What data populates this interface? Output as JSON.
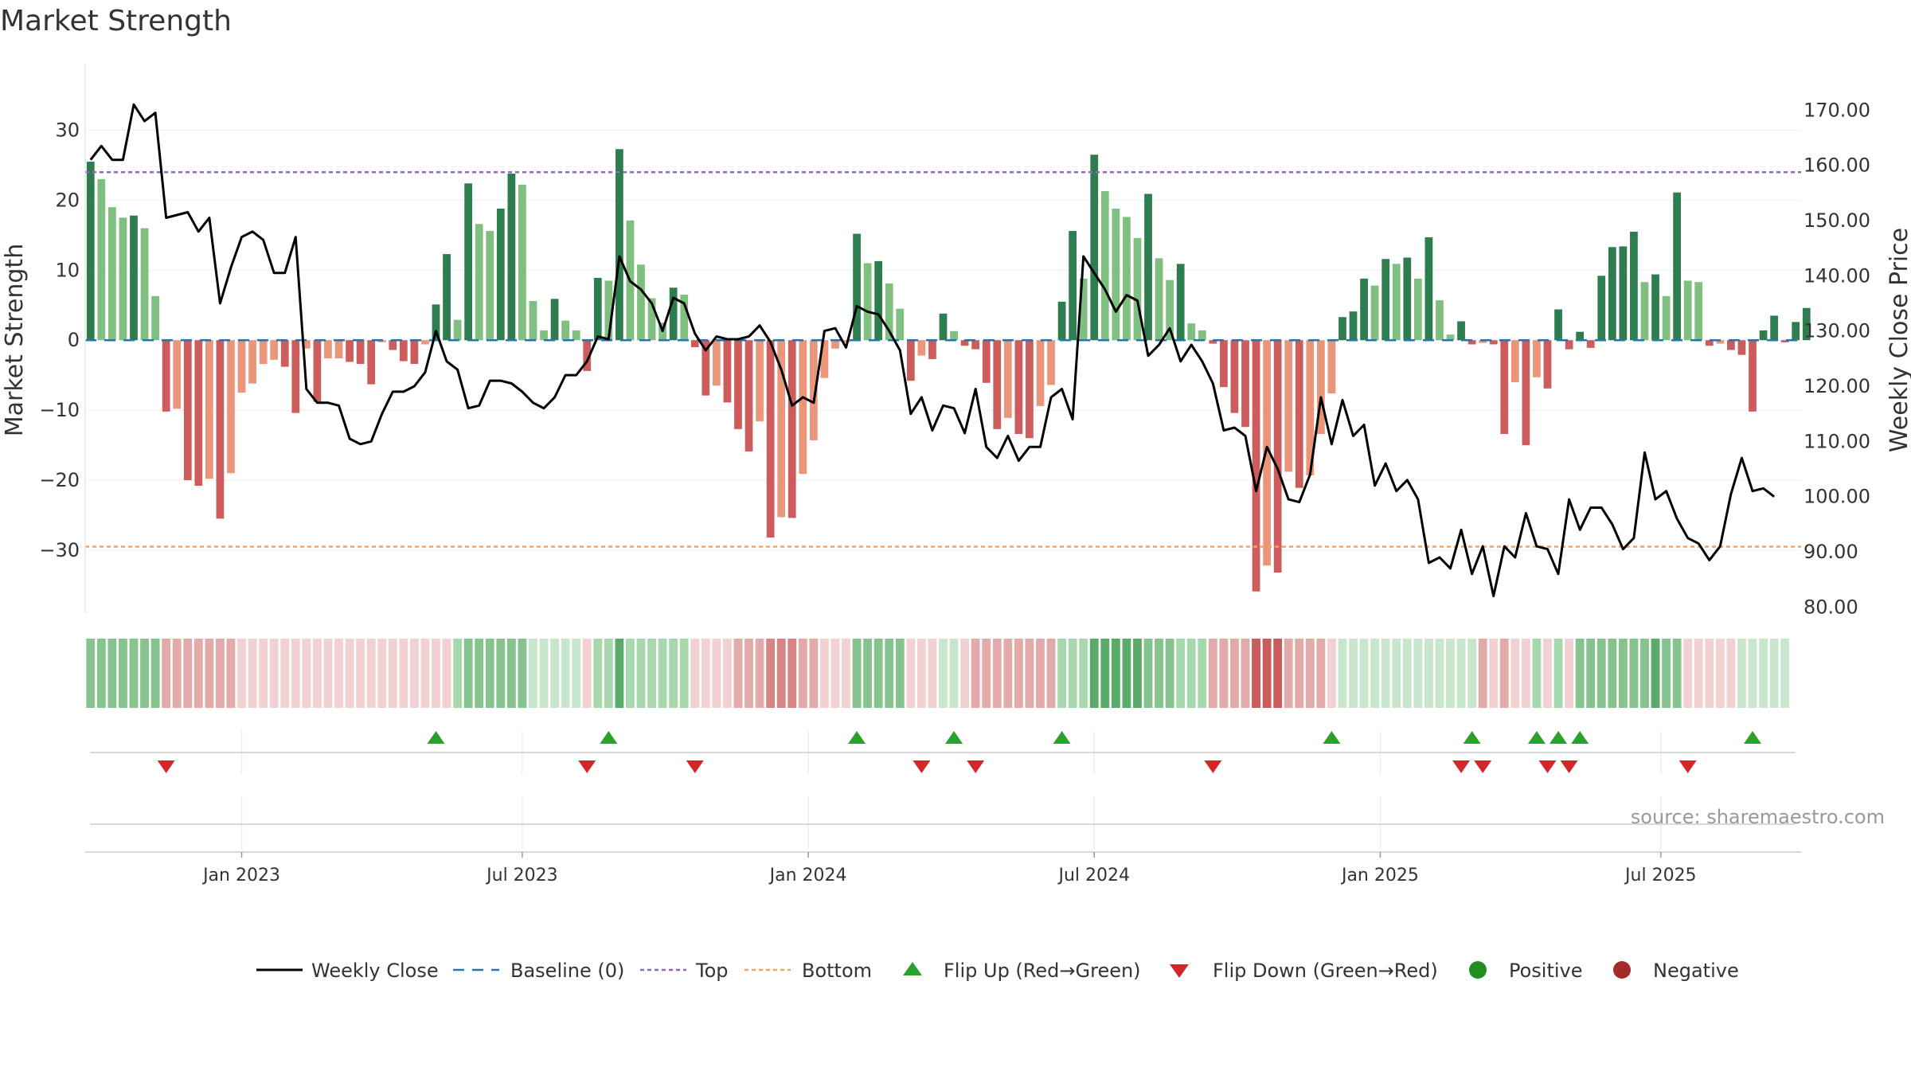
{
  "chart_data": {
    "type": "bar",
    "title": "Market Strength",
    "ylabel_left": "Market Strength",
    "ylabel_right": "Weekly Close Price",
    "ylim_left": [
      -39,
      39.5
    ],
    "ylim_right": [
      78.9,
      178.4
    ],
    "yticks_left": [
      30,
      20,
      10,
      0,
      -10,
      -20,
      -30
    ],
    "yticks_left_labels": [
      "30",
      "20",
      "10",
      "0",
      "−10",
      "−20",
      "−30"
    ],
    "yticks_right": [
      170,
      160,
      150,
      140,
      130,
      120,
      110,
      100,
      90,
      80
    ],
    "yticks_right_labels": [
      "170.00",
      "160.00",
      "150.00",
      "140.00",
      "130.00",
      "120.00",
      "110.00",
      "100.00",
      "90.00",
      "80.00"
    ],
    "top_threshold": 24,
    "bottom_threshold": -29.5,
    "x_index_range": [
      -0.5,
      158.5
    ],
    "x_ticks": [
      {
        "index": 14,
        "label": "Jan 2023"
      },
      {
        "index": 40,
        "label": "Jul 2023"
      },
      {
        "index": 66.5,
        "label": "Jan 2024"
      },
      {
        "index": 93,
        "label": "Jul 2024"
      },
      {
        "index": 119.5,
        "label": "Jan 2025"
      },
      {
        "index": 145.5,
        "label": "Jul 2025"
      }
    ],
    "strength": [
      25.5,
      23,
      19,
      17.5,
      17.8,
      16,
      6.3,
      -10.2,
      -9.8,
      -20,
      -20.8,
      -19.8,
      -25.5,
      -19,
      -7.5,
      -6.2,
      -3.4,
      -2.8,
      -3.8,
      -10.4,
      -1.2,
      -8.8,
      -2.6,
      -2.6,
      -3.1,
      -3.4,
      -6.3,
      -0.3,
      -1.4,
      -3,
      -3.4,
      -0.6,
      5.1,
      12.3,
      2.9,
      22.4,
      16.6,
      15.6,
      18.8,
      23.8,
      22.2,
      5.6,
      1.4,
      5.9,
      2.8,
      1.4,
      -4.4,
      8.9,
      8.5,
      27.3,
      17.1,
      10.8,
      6,
      2.5,
      7.5,
      6.5,
      -1,
      -7.9,
      -6.5,
      -8.9,
      -12.7,
      -15.9,
      -11.6,
      -28.2,
      -25.3,
      -25.4,
      -19.1,
      -14.3,
      -5.4,
      -1.2,
      -0.3,
      15.2,
      11,
      11.3,
      8.1,
      4.5,
      -5.8,
      -2.2,
      -2.7,
      3.8,
      1.3,
      -0.8,
      -1.3,
      -6.1,
      -12.7,
      -11.1,
      -13.4,
      -14,
      -9.4,
      -6.4,
      5.5,
      15.6,
      8.8,
      26.5,
      21.3,
      18.8,
      17.6,
      14.6,
      20.9,
      11.7,
      8.6,
      10.9,
      2.4,
      1.4,
      -0.5,
      -6.7,
      -10.4,
      -12.4,
      -35.9,
      -32.2,
      -33.2,
      -18.8,
      -21.1,
      -19.3,
      -13.4,
      -7.6,
      3.3,
      4.1,
      8.8,
      7.8,
      11.6,
      10.9,
      11.8,
      8.8,
      14.7,
      5.7,
      0.8,
      2.7,
      -0.6,
      -0.4,
      -0.6,
      -13.4,
      -6,
      -15,
      -5.3,
      -6.9,
      4.4,
      -1.3,
      1.2,
      -1.1,
      9.2,
      13.3,
      13.4,
      15.5,
      8.3,
      9.4,
      6.3,
      21.1,
      8.5,
      8.3,
      -0.8,
      -0.5,
      -1.4,
      -2.1,
      -10.2,
      1.4,
      3.5,
      -0.3,
      2.6,
      4.6
    ],
    "close": [
      161,
      163.5,
      161,
      161,
      171,
      168,
      169.5,
      150.5,
      151,
      151.5,
      148,
      150.5,
      135,
      141.5,
      147,
      148,
      146.5,
      140.5,
      140.5,
      147,
      119.5,
      117,
      117,
      116.5,
      110.5,
      109.5,
      110,
      115,
      119,
      119,
      120,
      122.5,
      130,
      124.5,
      123,
      116,
      116.5,
      121,
      121,
      120.5,
      119,
      117,
      116,
      118,
      122,
      122,
      124.5,
      129,
      128.5,
      143.5,
      139,
      137.5,
      135,
      130,
      136,
      135,
      129.5,
      126.5,
      129,
      128.5,
      128.5,
      129,
      131,
      128,
      123,
      116.5,
      118,
      117,
      130,
      130.5,
      127,
      134.5,
      133.5,
      133,
      130,
      126.5,
      115,
      118,
      112,
      116.5,
      116,
      111.5,
      119.5,
      109,
      107,
      111,
      106.5,
      109,
      109,
      118,
      119.5,
      114,
      143.5,
      140.5,
      137.5,
      133.5,
      136.5,
      135.5,
      125.5,
      127.5,
      130.5,
      124.5,
      127.5,
      124.5,
      120.5,
      112,
      112.5,
      111,
      101,
      109,
      105,
      99.5,
      99,
      104,
      118,
      109.5,
      117.5,
      111,
      113,
      102,
      106,
      101,
      103,
      99.5,
      88,
      89,
      87,
      94,
      86,
      91,
      82,
      91,
      89,
      97,
      91,
      90.5,
      86,
      99.5,
      94,
      98,
      98,
      95,
      90.5,
      92.5,
      108,
      99.5,
      101,
      96,
      92.5,
      91.5,
      88.5,
      91,
      100.5,
      107,
      101,
      101.5,
      100
    ],
    "strip_shades": [
      "g2",
      "g2",
      "g2",
      "g2",
      "g2",
      "g2",
      "g2",
      "r1",
      "r1",
      "r1",
      "r1",
      "r1",
      "r1",
      "r1",
      "r0",
      "r0",
      "r0",
      "r0",
      "r0",
      "r0",
      "r0",
      "r0",
      "r0",
      "r0",
      "r0",
      "r0",
      "r0",
      "r0",
      "r0",
      "r0",
      "r0",
      "r0",
      "r0",
      "r0",
      "g1",
      "g2",
      "g2",
      "g2",
      "g2",
      "g2",
      "g2",
      "g0",
      "g0",
      "g0",
      "g0",
      "g0",
      "r0",
      "g1",
      "g1",
      "g3",
      "g1",
      "g1",
      "g1",
      "g1",
      "g1",
      "g1",
      "r0",
      "r0",
      "r0",
      "r0",
      "r1",
      "r1",
      "r1",
      "r2",
      "r2",
      "r2",
      "r1",
      "r1",
      "r0",
      "r0",
      "r0",
      "g2",
      "g2",
      "g2",
      "g2",
      "g2",
      "r0",
      "r0",
      "r0",
      "g0",
      "g0",
      "r0",
      "r1",
      "r1",
      "r1",
      "r1",
      "r1",
      "r1",
      "r1",
      "r1",
      "g1",
      "g1",
      "g1",
      "g3",
      "g3",
      "g3",
      "g3",
      "g3",
      "g2",
      "g2",
      "g2",
      "g1",
      "g1",
      "g1",
      "r1",
      "r1",
      "r1",
      "r1",
      "r3",
      "r3",
      "r3",
      "r1",
      "r1",
      "r1",
      "r1",
      "r0",
      "g0",
      "g0",
      "g0",
      "g0",
      "g0",
      "g0",
      "g0",
      "g0",
      "g0",
      "g0",
      "g0",
      "g0",
      "g0",
      "r1",
      "r0",
      "r1",
      "r0",
      "r0",
      "g1",
      "r0",
      "g1",
      "r0",
      "g2",
      "g2",
      "g2",
      "g2",
      "g2",
      "g2",
      "g2",
      "g3",
      "g2",
      "g2",
      "r0",
      "r0",
      "r0",
      "r0",
      "r0",
      "g0",
      "g0",
      "g0",
      "g0",
      "g0"
    ],
    "flip_up_indices": [
      32,
      48,
      71,
      80,
      90,
      115,
      128,
      134,
      136,
      138,
      154
    ],
    "flip_down_indices": [
      7,
      46,
      56,
      77,
      82,
      104,
      127,
      129,
      135,
      137,
      148
    ],
    "legend": [
      {
        "key": "weekly_close",
        "label": "Weekly Close",
        "color": "#000000"
      },
      {
        "key": "baseline",
        "label": "Baseline (0)",
        "color": "#1f77b4"
      },
      {
        "key": "top",
        "label": "Top",
        "color": "#9467bd"
      },
      {
        "key": "bottom",
        "label": "Bottom",
        "color": "#f4a460"
      },
      {
        "key": "flip_up",
        "label": "Flip Up (Red→Green)",
        "color": "#2ca02c"
      },
      {
        "key": "flip_down",
        "label": "Flip Down (Green→Red)",
        "color": "#d62728"
      },
      {
        "key": "positive",
        "label": "Positive",
        "color": "#228b22"
      },
      {
        "key": "negative",
        "label": "Negative",
        "color": "#a52a2a"
      }
    ],
    "source": "source: sharemaestro.com",
    "colors": {
      "pos_strong": "#2e7d4f",
      "pos_light": "#7fbf7f",
      "neg_strong": "#cd5c5c",
      "neg_light": "#e9967a",
      "line": "#000000",
      "baseline": "#1f77b4",
      "top": "#9467bd",
      "bottom": "#f4a460",
      "flip_up": "#2ca02c",
      "flip_down": "#d62728",
      "strip_g0": "#c8e6cc",
      "strip_g1": "#a7d8ad",
      "strip_g2": "#86c38e",
      "strip_g3": "#5aab6a",
      "strip_r0": "#f1d1d1",
      "strip_r1": "#e3aaaa",
      "strip_r2": "#d68484",
      "strip_r3": "#c95d5d"
    }
  }
}
